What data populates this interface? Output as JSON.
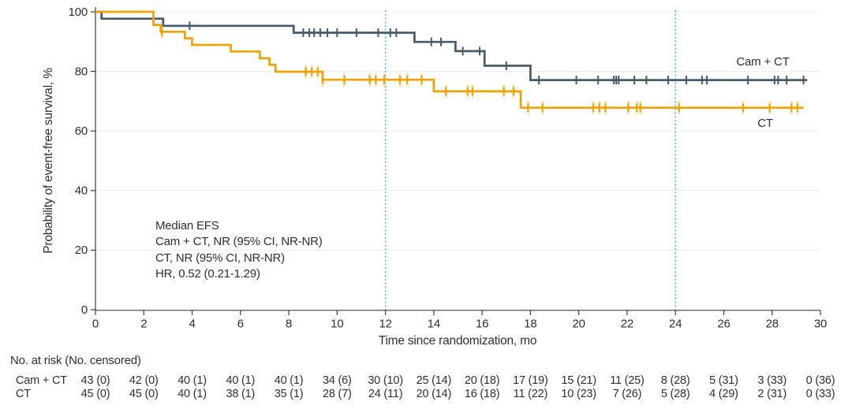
{
  "chart_data": {
    "type": "line",
    "subtype": "kaplan_meier_step",
    "title": "",
    "xlabel": "Time since randomization, mo",
    "ylabel": "Probability of event-free survival, %",
    "xlim": [
      0,
      30
    ],
    "ylim": [
      0,
      100
    ],
    "x_ticks": [
      0,
      2,
      4,
      6,
      8,
      10,
      12,
      14,
      16,
      18,
      20,
      22,
      24,
      26,
      28,
      30
    ],
    "y_ticks": [
      0,
      20,
      40,
      60,
      80,
      100
    ],
    "grid": "horizontal-light",
    "legend_position": "curve-end-labels",
    "reference_lines_x": [
      12,
      24
    ],
    "annotation": [
      "Median EFS",
      "Cam + CT, NR (95% CI, NR-NR)",
      "CT, NR (95% CI, NR-NR)",
      "HR, 0.52 (0.21-1.29)"
    ],
    "series": [
      {
        "name": "Cam + CT",
        "label_text": "Cam + CT",
        "color": "#455A6B",
        "steps": [
          [
            0,
            100
          ],
          [
            0.25,
            97.7
          ],
          [
            2.8,
            95.3
          ],
          [
            8.2,
            93.0
          ],
          [
            13.2,
            89.9
          ],
          [
            14.9,
            86.8
          ],
          [
            16.1,
            81.9
          ],
          [
            18.0,
            77.1
          ]
        ],
        "end_time": 29.45,
        "censor_times": [
          3.9,
          8.6,
          8.85,
          9.05,
          9.3,
          9.6,
          10.0,
          10.8,
          11.7,
          12.2,
          12.45,
          13.9,
          14.3,
          15.2,
          15.9,
          17.0,
          18.35,
          19.9,
          20.8,
          21.45,
          21.55,
          21.65,
          22.3,
          22.8,
          23.7,
          24.45,
          25.1,
          25.3,
          27.0,
          28.1,
          28.25,
          28.6,
          29.3
        ]
      },
      {
        "name": "CT",
        "label_text": "CT",
        "color": "#F0A202",
        "steps": [
          [
            0,
            100
          ],
          [
            2.4,
            95.6
          ],
          [
            2.7,
            93.3
          ],
          [
            3.7,
            91.1
          ],
          [
            4.0,
            88.9
          ],
          [
            5.6,
            86.7
          ],
          [
            6.8,
            84.4
          ],
          [
            7.2,
            82.2
          ],
          [
            7.45,
            79.9
          ],
          [
            9.4,
            77.2
          ],
          [
            14.0,
            73.3
          ],
          [
            17.6,
            67.8
          ]
        ],
        "end_time": 29.3,
        "censor_times": [
          2.75,
          8.7,
          8.95,
          9.2,
          9.4,
          10.3,
          11.35,
          11.6,
          11.95,
          12.6,
          12.9,
          13.5,
          14.5,
          15.4,
          15.6,
          16.9,
          17.3,
          17.9,
          18.5,
          20.6,
          20.85,
          21.1,
          22.05,
          22.4,
          22.55,
          24.15,
          26.8,
          27.9,
          28.8,
          29.05
        ]
      }
    ],
    "risk_table": {
      "title": "No. at risk (No. censored)",
      "times": [
        0,
        2,
        4,
        6,
        8,
        10,
        12,
        14,
        16,
        18,
        20,
        22,
        24,
        26,
        28,
        30
      ],
      "rows": [
        {
          "label": "Cam + CT",
          "values": [
            "43 (0)",
            "42 (0)",
            "40 (1)",
            "40 (1)",
            "40 (1)",
            "34 (6)",
            "30 (10)",
            "25 (14)",
            "20 (18)",
            "17 (19)",
            "15 (21)",
            "11 (25)",
            "8 (28)",
            "5 (31)",
            "3 (33)",
            "0 (36)"
          ]
        },
        {
          "label": "CT",
          "values": [
            "45 (0)",
            "45 (0)",
            "40 (1)",
            "38 (1)",
            "35 (1)",
            "28 (7)",
            "24 (11)",
            "20 (14)",
            "16 (18)",
            "11 (22)",
            "10 (23)",
            "7 (26)",
            "5 (28)",
            "4 (29)",
            "2 (31)",
            "0 (33)"
          ]
        }
      ]
    }
  },
  "colors": {
    "camct": "#455A6B",
    "ct": "#F0A202",
    "reference": "#41B9E5",
    "grid": "#ECECEC",
    "axis": "#3D3D3D",
    "text": "#2F2F2F"
  }
}
